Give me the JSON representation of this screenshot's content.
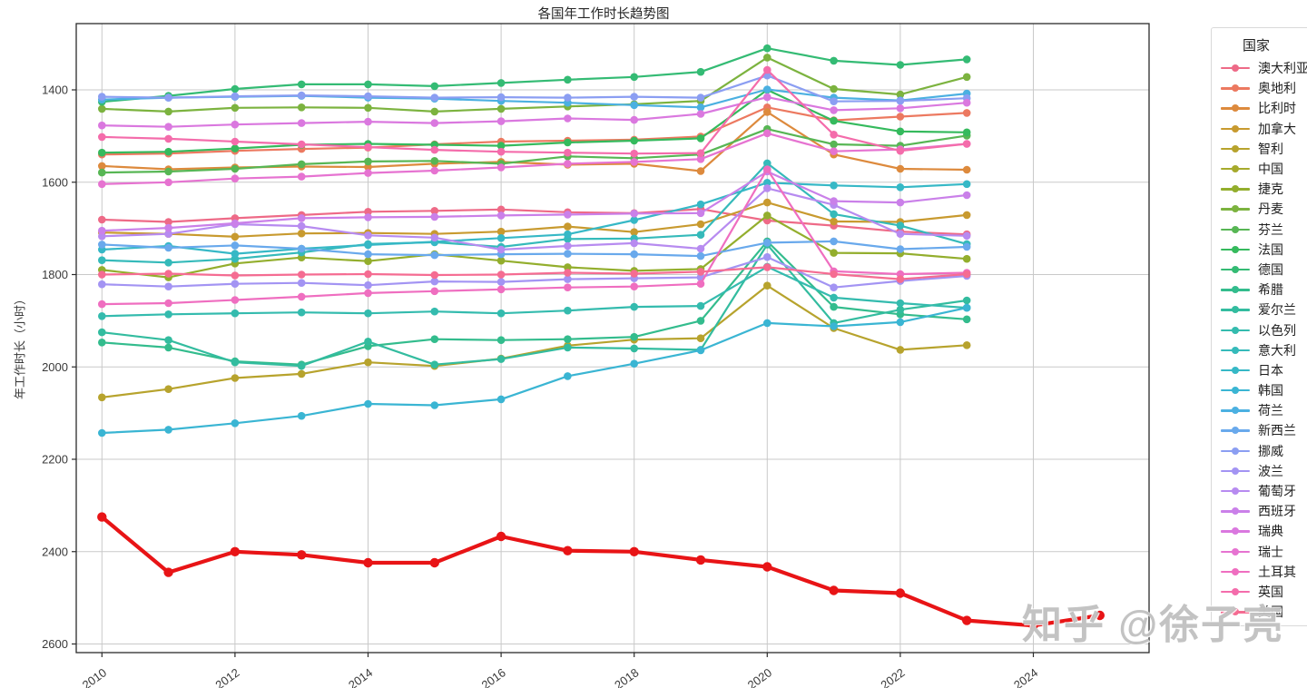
{
  "title": "各国年工作时长趋势图",
  "watermark": "知乎 @徐子亮",
  "chart_data": {
    "type": "line",
    "title": "各国年工作时长趋势图",
    "xlabel": "",
    "ylabel": "年工作时长（小时）",
    "legend_title": "国家",
    "legend_position": "right",
    "grid": true,
    "y_axis_inverted": true,
    "ylim": [
      1255,
      2655
    ],
    "y_ticks": [
      1400,
      1600,
      1800,
      2000,
      2200,
      2400,
      2600
    ],
    "x_ticks": [
      2010,
      2012,
      2014,
      2016,
      2018,
      2020,
      2022,
      2024
    ],
    "years": [
      2010,
      2011,
      2012,
      2013,
      2014,
      2015,
      2016,
      2017,
      2018,
      2019,
      2020,
      2021,
      2022,
      2023,
      2024,
      2025
    ],
    "highlight_color": "#e81416",
    "series": [
      {
        "name": "澳大利亚",
        "color": "#ee6a87",
        "values": [
          1681,
          1686,
          1678,
          1671,
          1664,
          1662,
          1659,
          1665,
          1667,
          1658,
          1683,
          1694,
          1707,
          1713,
          null,
          null
        ]
      },
      {
        "name": "奥地利",
        "color": "#ec7960",
        "values": [
          1540,
          1538,
          1532,
          1528,
          1525,
          1518,
          1512,
          1510,
          1508,
          1501,
          1438,
          1466,
          1458,
          1450,
          null,
          null
        ]
      },
      {
        "name": "比利时",
        "color": "#dd8a3d",
        "values": [
          1565,
          1572,
          1568,
          1566,
          1567,
          1560,
          1556,
          1562,
          1560,
          1576,
          1448,
          1540,
          1571,
          1573,
          null,
          null
        ]
      },
      {
        "name": "加拿大",
        "color": "#c89a2f",
        "values": [
          1709,
          1712,
          1718,
          1711,
          1710,
          1712,
          1707,
          1696,
          1708,
          1691,
          1644,
          1685,
          1686,
          1671,
          null,
          null
        ]
      },
      {
        "name": "智利",
        "color": "#b7a32d",
        "values": [
          2066,
          2048,
          2024,
          2015,
          1990,
          1998,
          1982,
          1954,
          1941,
          1938,
          1824,
          1916,
          1963,
          1953,
          null,
          null
        ]
      },
      {
        "name": "中国",
        "color": "#a6aa2c",
        "highlight": true,
        "values": [
          2325,
          2445,
          2400,
          2407,
          2424,
          2424,
          2367,
          2398,
          2400,
          2418,
          2433,
          2484,
          2490,
          2549,
          2560,
          2538
        ]
      },
      {
        "name": "捷克",
        "color": "#93ae2d",
        "values": [
          1790,
          1806,
          1776,
          1763,
          1771,
          1756,
          1770,
          1784,
          1792,
          1788,
          1672,
          1753,
          1754,
          1766,
          null,
          null
        ]
      },
      {
        "name": "丹麦",
        "color": "#7cb33f",
        "values": [
          1441,
          1447,
          1439,
          1438,
          1439,
          1447,
          1441,
          1436,
          1431,
          1424,
          1330,
          1398,
          1410,
          1372,
          null,
          null
        ]
      },
      {
        "name": "芬兰",
        "color": "#57b654",
        "values": [
          1579,
          1577,
          1571,
          1561,
          1555,
          1554,
          1560,
          1544,
          1548,
          1540,
          1485,
          1518,
          1521,
          1499,
          null,
          null
        ]
      },
      {
        "name": "法国",
        "color": "#35ba5d",
        "values": [
          1536,
          1534,
          1527,
          1519,
          1517,
          1519,
          1521,
          1514,
          1510,
          1505,
          1400,
          1467,
          1490,
          1492,
          null,
          null
        ]
      },
      {
        "name": "德国",
        "color": "#34bb74",
        "values": [
          1426,
          1413,
          1398,
          1388,
          1388,
          1392,
          1385,
          1378,
          1372,
          1361,
          1310,
          1337,
          1346,
          1334,
          null,
          null
        ]
      },
      {
        "name": "希腊",
        "color": "#33bc8d",
        "values": [
          1947,
          1958,
          1988,
          1995,
          1955,
          1940,
          1942,
          1940,
          1935,
          1900,
          1728,
          1870,
          1886,
          1897,
          null,
          null
        ]
      },
      {
        "name": "爱尔兰",
        "color": "#33bc9f",
        "values": [
          1925,
          1942,
          1990,
          1998,
          1945,
          1995,
          1983,
          1958,
          1960,
          1963,
          1735,
          1905,
          1876,
          1856,
          null,
          null
        ]
      },
      {
        "name": "以色列",
        "color": "#34bbae",
        "values": [
          1890,
          1886,
          1884,
          1882,
          1884,
          1880,
          1884,
          1878,
          1870,
          1868,
          1783,
          1850,
          1862,
          1872,
          null,
          null
        ]
      },
      {
        "name": "意大利",
        "color": "#35baba",
        "values": [
          1769,
          1774,
          1766,
          1752,
          1734,
          1730,
          1740,
          1723,
          1722,
          1714,
          1559,
          1669,
          1694,
          1734,
          null,
          null
        ]
      },
      {
        "name": "日本",
        "color": "#36b8c6",
        "values": [
          1746,
          1738,
          1755,
          1744,
          1736,
          1729,
          1721,
          1713,
          1682,
          1648,
          1601,
          1607,
          1611,
          1604,
          null,
          null
        ]
      },
      {
        "name": "韩国",
        "color": "#3ab5d3",
        "values": [
          2143,
          2136,
          2122,
          2106,
          2080,
          2083,
          2070,
          2020,
          1993,
          1964,
          1905,
          1912,
          1903,
          1872,
          null,
          null
        ]
      },
      {
        "name": "荷兰",
        "color": "#4bb0e1",
        "values": [
          1421,
          1417,
          1415,
          1413,
          1417,
          1419,
          1424,
          1428,
          1433,
          1438,
          1399,
          1417,
          1423,
          1408,
          null,
          null
        ]
      },
      {
        "name": "新西兰",
        "color": "#69a9ec",
        "values": [
          1735,
          1742,
          1737,
          1744,
          1756,
          1758,
          1756,
          1755,
          1756,
          1760,
          1731,
          1728,
          1745,
          1740,
          null,
          null
        ]
      },
      {
        "name": "挪威",
        "color": "#8b9ef2",
        "values": [
          1415,
          1417,
          1414,
          1412,
          1414,
          1417,
          1416,
          1417,
          1415,
          1417,
          1369,
          1425,
          1424,
          1418,
          null,
          null
        ]
      },
      {
        "name": "波兰",
        "color": "#a394f3",
        "values": [
          1821,
          1826,
          1820,
          1818,
          1823,
          1815,
          1816,
          1810,
          1808,
          1806,
          1762,
          1828,
          1814,
          1803,
          null,
          null
        ]
      },
      {
        "name": "葡萄牙",
        "color": "#b78bf0",
        "values": [
          1717,
          1712,
          1691,
          1695,
          1715,
          1720,
          1746,
          1738,
          1732,
          1744,
          1613,
          1649,
          1712,
          1716,
          null,
          null
        ]
      },
      {
        "name": "西班牙",
        "color": "#ca80e9",
        "values": [
          1705,
          1699,
          1689,
          1678,
          1676,
          1675,
          1672,
          1670,
          1668,
          1667,
          1577,
          1641,
          1644,
          1628,
          null,
          null
        ]
      },
      {
        "name": "瑞典",
        "color": "#da78df",
        "values": [
          1477,
          1480,
          1475,
          1472,
          1469,
          1472,
          1468,
          1462,
          1465,
          1452,
          1416,
          1444,
          1440,
          1428,
          null,
          null
        ]
      },
      {
        "name": "瑞士",
        "color": "#e673d1",
        "values": [
          1604,
          1600,
          1592,
          1588,
          1580,
          1575,
          1568,
          1560,
          1556,
          1550,
          1494,
          1533,
          1529,
          1517,
          null,
          null
        ]
      },
      {
        "name": "土耳其",
        "color": "#ef6ec0",
        "values": [
          1864,
          1862,
          1855,
          1848,
          1840,
          1836,
          1832,
          1828,
          1826,
          1820,
          1572,
          1793,
          1799,
          1796,
          null,
          null
        ]
      },
      {
        "name": "英国",
        "color": "#f46cab",
        "values": [
          1502,
          1506,
          1512,
          1518,
          1524,
          1530,
          1534,
          1536,
          1538,
          1537,
          1357,
          1497,
          1532,
          1517,
          null,
          null
        ]
      },
      {
        "name": "美国",
        "color": "#f56c92",
        "values": [
          1800,
          1798,
          1802,
          1800,
          1799,
          1801,
          1800,
          1796,
          1798,
          1794,
          1784,
          1799,
          1810,
          1799,
          null,
          null
        ]
      }
    ]
  }
}
